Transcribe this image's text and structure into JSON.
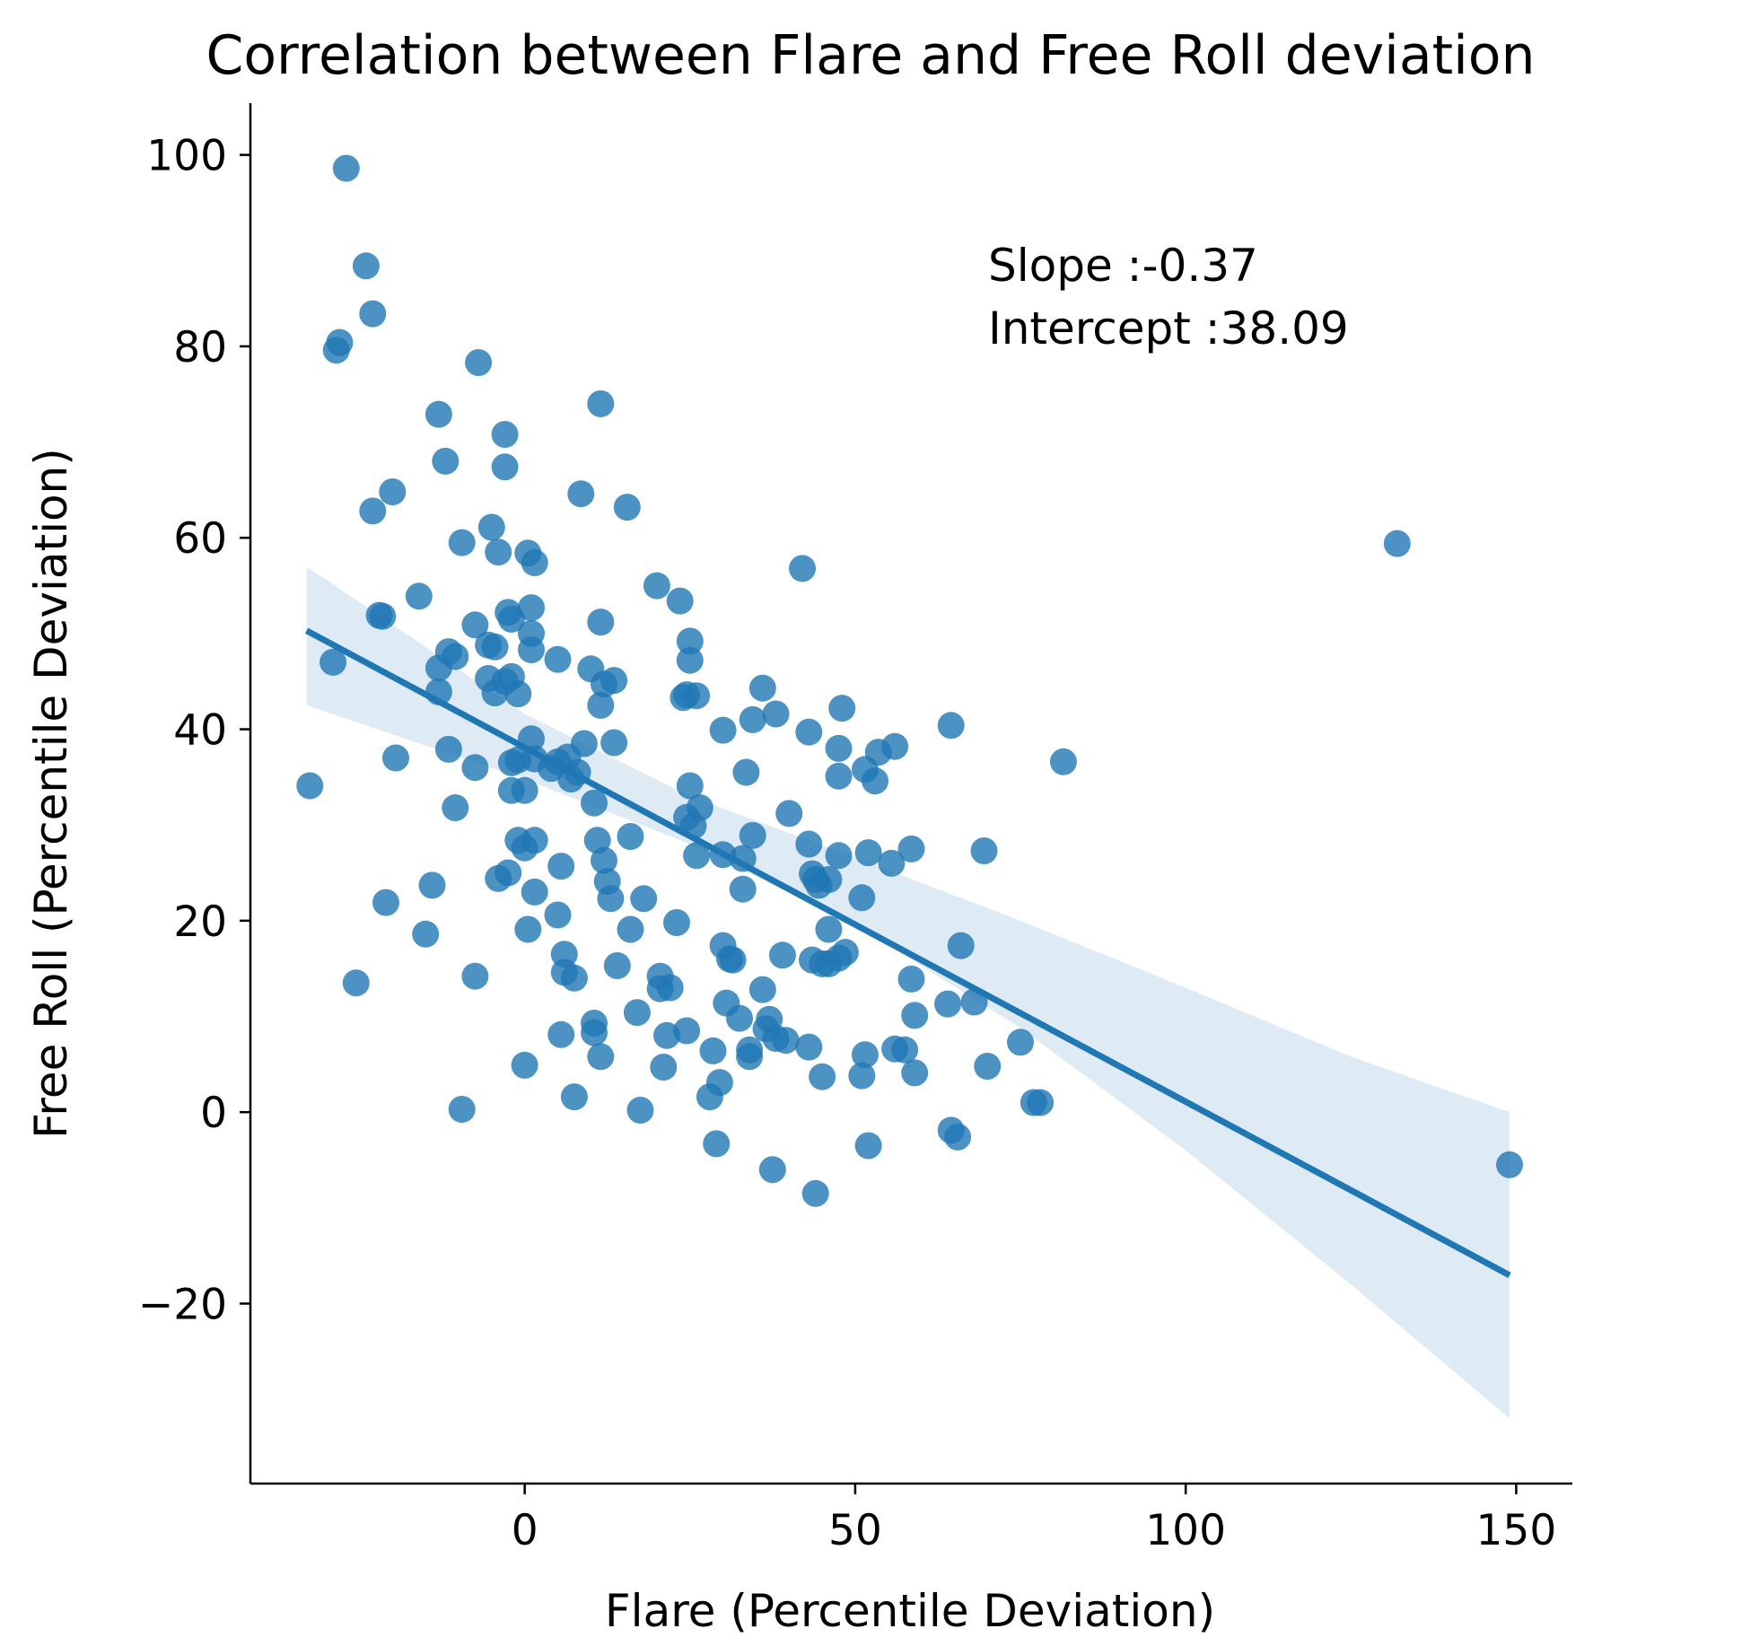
{
  "chart_data": {
    "type": "scatter",
    "title": "Correlation between Flare and Free Roll deviation",
    "xlabel": "Flare (Percentile Deviation)",
    "ylabel": "Free Roll (Percentile Deviation)",
    "xlim": [
      -41.5,
      158.5
    ],
    "ylim": [
      -38.8,
      105.4
    ],
    "xticks": [
      0,
      50,
      100,
      150
    ],
    "xtick_labels": [
      "0",
      "50",
      "100",
      "150"
    ],
    "yticks": [
      -20,
      0,
      20,
      40,
      60,
      80,
      100
    ],
    "ytick_labels": [
      "−20",
      "0",
      "20",
      "40",
      "60",
      "80",
      "100"
    ],
    "grid": false,
    "annotations": [
      "Slope :-0.37",
      "Intercept :38.09"
    ],
    "colors": {
      "points": "#1f77b4",
      "line": "#1f77b4",
      "band": "#1f77b4"
    },
    "regression": {
      "slope": -0.37,
      "intercept": 38.09,
      "x_range": [
        -33,
        149
      ]
    },
    "confidence_band": {
      "x": [
        -33,
        0,
        25,
        50,
        75,
        100,
        125,
        149
      ],
      "lower": [
        42.5,
        34.8,
        28.0,
        19.6,
        8.8,
        -4.0,
        -18.0,
        -32.0
      ],
      "upper": [
        57.0,
        41.6,
        33.0,
        26.6,
        20.0,
        13.0,
        5.8,
        0.0
      ]
    },
    "points": [
      {
        "x": -27.0,
        "y": 98.6
      },
      {
        "x": -24.0,
        "y": 88.4
      },
      {
        "x": -23.0,
        "y": 83.4
      },
      {
        "x": -28.0,
        "y": 80.4
      },
      {
        "x": -28.5,
        "y": 79.6
      },
      {
        "x": -7.0,
        "y": 78.3
      },
      {
        "x": 11.5,
        "y": 74.0
      },
      {
        "x": -13.0,
        "y": 72.9
      },
      {
        "x": -3.0,
        "y": 70.8
      },
      {
        "x": -12.0,
        "y": 68.0
      },
      {
        "x": -3.0,
        "y": 67.4
      },
      {
        "x": 8.5,
        "y": 64.6
      },
      {
        "x": -20.0,
        "y": 64.8
      },
      {
        "x": 15.5,
        "y": 63.2
      },
      {
        "x": -23.0,
        "y": 62.8
      },
      {
        "x": -5.0,
        "y": 61.1
      },
      {
        "x": -9.5,
        "y": 59.5
      },
      {
        "x": -4.0,
        "y": 58.5
      },
      {
        "x": 0.5,
        "y": 58.4
      },
      {
        "x": 1.5,
        "y": 57.4
      },
      {
        "x": 42.0,
        "y": 56.8
      },
      {
        "x": 20.0,
        "y": 55.0
      },
      {
        "x": -16.0,
        "y": 53.9
      },
      {
        "x": 23.5,
        "y": 53.4
      },
      {
        "x": 1.0,
        "y": 52.7
      },
      {
        "x": -22.0,
        "y": 51.9
      },
      {
        "x": -21.5,
        "y": 51.8
      },
      {
        "x": -2.5,
        "y": 52.2
      },
      {
        "x": -2.0,
        "y": 51.5
      },
      {
        "x": 11.5,
        "y": 51.2
      },
      {
        "x": -7.5,
        "y": 50.9
      },
      {
        "x": 1.0,
        "y": 50.0
      },
      {
        "x": 25.0,
        "y": 49.2
      },
      {
        "x": -5.5,
        "y": 48.8
      },
      {
        "x": -4.5,
        "y": 48.6
      },
      {
        "x": 1.0,
        "y": 48.3
      },
      {
        "x": -11.5,
        "y": 48.1
      },
      {
        "x": -10.5,
        "y": 47.6
      },
      {
        "x": 5.0,
        "y": 47.3
      },
      {
        "x": 25.0,
        "y": 47.2
      },
      {
        "x": -29.0,
        "y": 47.0
      },
      {
        "x": -13.0,
        "y": 46.4
      },
      {
        "x": 10.0,
        "y": 46.3
      },
      {
        "x": -2.0,
        "y": 45.5
      },
      {
        "x": -5.5,
        "y": 45.3
      },
      {
        "x": -3.0,
        "y": 45.0
      },
      {
        "x": 13.5,
        "y": 45.1
      },
      {
        "x": 12.0,
        "y": 44.7
      },
      {
        "x": 36.0,
        "y": 44.3
      },
      {
        "x": -4.5,
        "y": 43.8
      },
      {
        "x": -1.0,
        "y": 43.7
      },
      {
        "x": -13.0,
        "y": 43.9
      },
      {
        "x": 24.5,
        "y": 43.6
      },
      {
        "x": 26.0,
        "y": 43.5
      },
      {
        "x": 24.0,
        "y": 43.3
      },
      {
        "x": 11.5,
        "y": 42.5
      },
      {
        "x": 48.0,
        "y": 42.2
      },
      {
        "x": 38.0,
        "y": 41.6
      },
      {
        "x": 34.5,
        "y": 41.0
      },
      {
        "x": 64.5,
        "y": 40.4
      },
      {
        "x": 30.0,
        "y": 39.9
      },
      {
        "x": 43.0,
        "y": 39.7
      },
      {
        "x": 1.0,
        "y": 39.0
      },
      {
        "x": 13.5,
        "y": 38.6
      },
      {
        "x": 9.0,
        "y": 38.5
      },
      {
        "x": 56.0,
        "y": 38.2
      },
      {
        "x": 47.5,
        "y": 38.0
      },
      {
        "x": -11.5,
        "y": 37.9
      },
      {
        "x": 53.5,
        "y": 37.6
      },
      {
        "x": 6.5,
        "y": 37.1
      },
      {
        "x": -19.5,
        "y": 37.0
      },
      {
        "x": -1.0,
        "y": 36.8
      },
      {
        "x": 1.5,
        "y": 36.9
      },
      {
        "x": 5.0,
        "y": 36.6
      },
      {
        "x": 81.5,
        "y": 36.6
      },
      {
        "x": -2.0,
        "y": 36.5
      },
      {
        "x": 4.0,
        "y": 35.9
      },
      {
        "x": -7.5,
        "y": 36.0
      },
      {
        "x": 8.0,
        "y": 35.5
      },
      {
        "x": 33.5,
        "y": 35.5
      },
      {
        "x": 51.5,
        "y": 35.8
      },
      {
        "x": 47.5,
        "y": 35.1
      },
      {
        "x": 53.0,
        "y": 34.6
      },
      {
        "x": 7.0,
        "y": 34.8
      },
      {
        "x": 25.0,
        "y": 34.1
      },
      {
        "x": -32.5,
        "y": 34.1
      },
      {
        "x": -2.0,
        "y": 33.6
      },
      {
        "x": 0.0,
        "y": 33.6
      },
      {
        "x": 10.5,
        "y": 32.3
      },
      {
        "x": -10.5,
        "y": 31.8
      },
      {
        "x": 26.5,
        "y": 31.8
      },
      {
        "x": 40.0,
        "y": 31.2
      },
      {
        "x": 24.5,
        "y": 30.8
      },
      {
        "x": 25.5,
        "y": 29.9
      },
      {
        "x": 34.5,
        "y": 28.9
      },
      {
        "x": 16.0,
        "y": 28.8
      },
      {
        "x": 11.0,
        "y": 28.4
      },
      {
        "x": -1.0,
        "y": 28.4
      },
      {
        "x": 1.5,
        "y": 28.4
      },
      {
        "x": 43.0,
        "y": 28.0
      },
      {
        "x": 0.0,
        "y": 27.6
      },
      {
        "x": 58.5,
        "y": 27.5
      },
      {
        "x": 69.5,
        "y": 27.3
      },
      {
        "x": 52.0,
        "y": 27.1
      },
      {
        "x": 30.0,
        "y": 26.9
      },
      {
        "x": 47.5,
        "y": 26.8
      },
      {
        "x": 26.0,
        "y": 26.8
      },
      {
        "x": 33.0,
        "y": 26.5
      },
      {
        "x": 12.0,
        "y": 26.3
      },
      {
        "x": 55.5,
        "y": 26.0
      },
      {
        "x": 5.5,
        "y": 25.7
      },
      {
        "x": -2.5,
        "y": 25.0
      },
      {
        "x": 43.5,
        "y": 24.9
      },
      {
        "x": 44.0,
        "y": 24.3
      },
      {
        "x": -4.0,
        "y": 24.4
      },
      {
        "x": 12.5,
        "y": 24.1
      },
      {
        "x": 46.0,
        "y": 24.3
      },
      {
        "x": 44.5,
        "y": 23.7
      },
      {
        "x": -14.0,
        "y": 23.7
      },
      {
        "x": 33.0,
        "y": 23.3
      },
      {
        "x": 1.5,
        "y": 23.0
      },
      {
        "x": 13.0,
        "y": 22.3
      },
      {
        "x": 51.0,
        "y": 22.4
      },
      {
        "x": 18.0,
        "y": 22.3
      },
      {
        "x": -21.0,
        "y": 21.9
      },
      {
        "x": 5.0,
        "y": 20.6
      },
      {
        "x": 23.0,
        "y": 19.8
      },
      {
        "x": 0.5,
        "y": 19.1
      },
      {
        "x": 16.0,
        "y": 19.1
      },
      {
        "x": 46.0,
        "y": 19.1
      },
      {
        "x": -15.0,
        "y": 18.6
      },
      {
        "x": 30.0,
        "y": 17.4
      },
      {
        "x": 66.0,
        "y": 17.4
      },
      {
        "x": 6.0,
        "y": 16.5
      },
      {
        "x": 39.0,
        "y": 16.4
      },
      {
        "x": 48.5,
        "y": 16.7
      },
      {
        "x": 31.5,
        "y": 15.9
      },
      {
        "x": 31.0,
        "y": 16.0
      },
      {
        "x": 43.5,
        "y": 15.9
      },
      {
        "x": 47.5,
        "y": 16.1
      },
      {
        "x": 45.0,
        "y": 15.5
      },
      {
        "x": 46.0,
        "y": 15.5
      },
      {
        "x": 14.0,
        "y": 15.3
      },
      {
        "x": 6.0,
        "y": 14.6
      },
      {
        "x": -7.5,
        "y": 14.2
      },
      {
        "x": 20.5,
        "y": 14.2
      },
      {
        "x": 7.5,
        "y": 14.0
      },
      {
        "x": 58.5,
        "y": 13.9
      },
      {
        "x": -25.5,
        "y": 13.5
      },
      {
        "x": 22.0,
        "y": 13.0
      },
      {
        "x": 20.5,
        "y": 12.9
      },
      {
        "x": 36.0,
        "y": 12.8
      },
      {
        "x": 68.0,
        "y": 11.5
      },
      {
        "x": 30.5,
        "y": 11.4
      },
      {
        "x": 64.0,
        "y": 11.3
      },
      {
        "x": 17.0,
        "y": 10.4
      },
      {
        "x": 59.0,
        "y": 10.1
      },
      {
        "x": 32.5,
        "y": 9.8
      },
      {
        "x": 37.0,
        "y": 9.7
      },
      {
        "x": 10.5,
        "y": 9.3
      },
      {
        "x": 36.5,
        "y": 8.7
      },
      {
        "x": 24.5,
        "y": 8.5
      },
      {
        "x": 10.5,
        "y": 8.3
      },
      {
        "x": 5.5,
        "y": 8.1
      },
      {
        "x": 21.5,
        "y": 8.0
      },
      {
        "x": 38.0,
        "y": 7.7
      },
      {
        "x": 39.5,
        "y": 7.5
      },
      {
        "x": 75.0,
        "y": 7.3
      },
      {
        "x": 43.0,
        "y": 6.8
      },
      {
        "x": 57.5,
        "y": 6.5
      },
      {
        "x": 56.0,
        "y": 6.6
      },
      {
        "x": 28.5,
        "y": 6.4
      },
      {
        "x": 34.0,
        "y": 6.5
      },
      {
        "x": 51.5,
        "y": 6.0
      },
      {
        "x": 34.0,
        "y": 5.8
      },
      {
        "x": 11.5,
        "y": 5.8
      },
      {
        "x": 70.0,
        "y": 4.8
      },
      {
        "x": 0.0,
        "y": 4.9
      },
      {
        "x": 21.0,
        "y": 4.7
      },
      {
        "x": 59.0,
        "y": 4.1
      },
      {
        "x": 45.0,
        "y": 3.7
      },
      {
        "x": 51.0,
        "y": 3.8
      },
      {
        "x": 29.5,
        "y": 3.1
      },
      {
        "x": 28.0,
        "y": 1.6
      },
      {
        "x": 7.5,
        "y": 1.6
      },
      {
        "x": 77.0,
        "y": 1.0
      },
      {
        "x": 78.0,
        "y": 1.0
      },
      {
        "x": -9.5,
        "y": 0.3
      },
      {
        "x": 17.5,
        "y": 0.2
      },
      {
        "x": 64.5,
        "y": -1.9
      },
      {
        "x": 65.5,
        "y": -2.6
      },
      {
        "x": 29.0,
        "y": -3.3
      },
      {
        "x": 52.0,
        "y": -3.5
      },
      {
        "x": 149.0,
        "y": -5.5
      },
      {
        "x": 37.5,
        "y": -6.0
      },
      {
        "x": 44.0,
        "y": -8.5
      },
      {
        "x": 132.0,
        "y": 59.4
      }
    ]
  }
}
